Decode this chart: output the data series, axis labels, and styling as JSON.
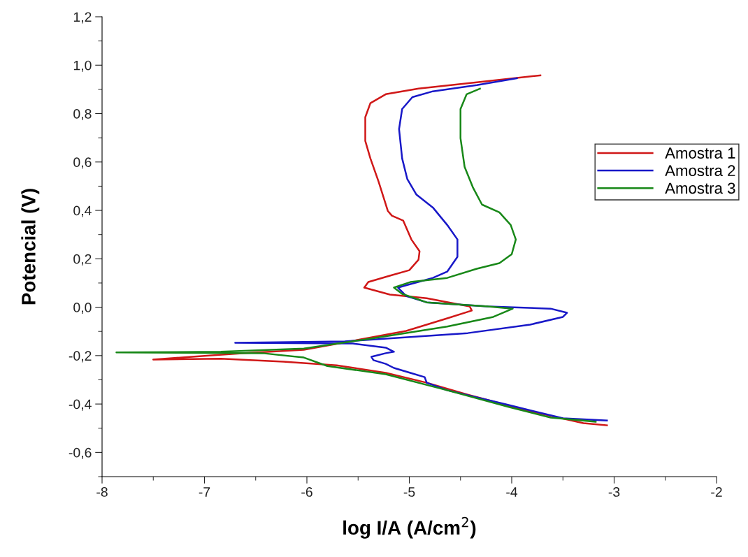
{
  "chart_data": {
    "type": "line",
    "xlabel": "log I/A (A/cm$^{2}$)",
    "ylabel": "Potencial (V)",
    "xlim": [
      -8,
      -2
    ],
    "xticks": [
      -8,
      -7,
      -6,
      -5,
      -4,
      -3,
      -2
    ],
    "ylim": [
      -0.7,
      1.2
    ],
    "yticks": [
      {
        "value": -0.6,
        "label": "-0,6"
      },
      {
        "value": -0.4,
        "label": "-0,4"
      },
      {
        "value": -0.2,
        "label": "-0,2"
      },
      {
        "value": 0.0,
        "label": "0,0"
      },
      {
        "value": 0.2,
        "label": "0,2"
      },
      {
        "value": 0.4,
        "label": "0,4"
      },
      {
        "value": 0.6,
        "label": "0,6"
      },
      {
        "value": 0.8,
        "label": "0,8"
      },
      {
        "value": 1.0,
        "label": "1,0"
      },
      {
        "value": 1.2,
        "label": "1,2"
      }
    ],
    "grid": false,
    "legend": "right",
    "marker": "none",
    "line_style": "solid",
    "series": [
      {
        "name": "Amostra 1",
        "color": "#d01818",
        "x": [
          -3.07,
          -3.3,
          -3.82,
          -4.43,
          -4.83,
          -5.23,
          -5.71,
          -6.23,
          -6.84,
          -7.5,
          -6.63,
          -6.03,
          -5.55,
          -5.03,
          -4.63,
          -4.39,
          -4.41,
          -4.83,
          -5.19,
          -5.44,
          -5.4,
          -5.19,
          -5.0,
          -4.91,
          -4.9,
          -4.98,
          -5.06,
          -5.17,
          -5.21,
          -5.3,
          -5.38,
          -5.43,
          -5.43,
          -5.38,
          -5.23,
          -4.91,
          -4.34,
          -3.72
        ],
        "values": [
          -0.488,
          -0.479,
          -0.43,
          -0.361,
          -0.312,
          -0.271,
          -0.24,
          -0.225,
          -0.213,
          -0.216,
          -0.19,
          -0.176,
          -0.139,
          -0.098,
          -0.046,
          -0.014,
          0.003,
          0.037,
          0.052,
          0.081,
          0.104,
          0.13,
          0.153,
          0.196,
          0.231,
          0.28,
          0.358,
          0.378,
          0.398,
          0.519,
          0.615,
          0.687,
          0.785,
          0.843,
          0.88,
          0.903,
          0.929,
          0.958
        ]
      },
      {
        "name": "Amostra 2",
        "color": "#1818c8",
        "x": [
          -3.07,
          -3.5,
          -4.03,
          -4.63,
          -4.83,
          -4.85,
          -4.99,
          -5.15,
          -5.23,
          -5.35,
          -5.37,
          -5.23,
          -5.15,
          -5.23,
          -5.55,
          -6.7,
          -5.63,
          -4.43,
          -3.82,
          -3.5,
          -3.46,
          -3.62,
          -4.23,
          -4.83,
          -5.03,
          -5.11,
          -5.02,
          -4.77,
          -4.63,
          -4.53,
          -4.53,
          -4.63,
          -4.77,
          -4.93,
          -5.02,
          -5.07,
          -5.1,
          -5.07,
          -4.97,
          -4.77,
          -4.34,
          -3.95
        ],
        "values": [
          -0.468,
          -0.459,
          -0.404,
          -0.343,
          -0.312,
          -0.289,
          -0.271,
          -0.251,
          -0.234,
          -0.219,
          -0.205,
          -0.19,
          -0.184,
          -0.167,
          -0.15,
          -0.147,
          -0.141,
          -0.107,
          -0.072,
          -0.04,
          -0.023,
          -0.006,
          0.003,
          0.02,
          0.046,
          0.081,
          0.092,
          0.121,
          0.147,
          0.208,
          0.28,
          0.34,
          0.412,
          0.465,
          0.53,
          0.615,
          0.736,
          0.819,
          0.868,
          0.892,
          0.918,
          0.946
        ]
      },
      {
        "name": "Amostra 3",
        "color": "#188818",
        "x": [
          -3.18,
          -3.62,
          -4.03,
          -4.63,
          -5.23,
          -5.8,
          -6.03,
          -6.43,
          -7.86,
          -6.84,
          -6.03,
          -5.43,
          -4.63,
          -4.18,
          -3.99,
          -4.23,
          -4.83,
          -5.07,
          -5.15,
          -4.99,
          -4.63,
          -4.34,
          -4.12,
          -4.0,
          -3.96,
          -4.01,
          -4.12,
          -4.29,
          -4.38,
          -4.46,
          -4.5,
          -4.5,
          -4.44,
          -4.31
        ],
        "values": [
          -0.473,
          -0.456,
          -0.412,
          -0.343,
          -0.277,
          -0.243,
          -0.208,
          -0.19,
          -0.187,
          -0.184,
          -0.171,
          -0.133,
          -0.08,
          -0.04,
          -0.006,
          0.003,
          0.02,
          0.055,
          0.081,
          0.104,
          0.121,
          0.159,
          0.182,
          0.219,
          0.28,
          0.34,
          0.392,
          0.424,
          0.496,
          0.58,
          0.698,
          0.819,
          0.88,
          0.903
        ]
      }
    ]
  }
}
